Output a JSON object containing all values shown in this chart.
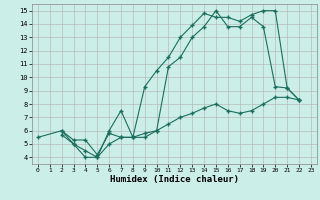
{
  "xlabel": "Humidex (Indice chaleur)",
  "bg_color": "#cceee8",
  "grid_color": "#b0b0b0",
  "line_color": "#1a6e5e",
  "xlim": [
    -0.5,
    23.5
  ],
  "ylim": [
    3.5,
    15.5
  ],
  "xticks": [
    0,
    1,
    2,
    3,
    4,
    5,
    6,
    7,
    8,
    9,
    10,
    11,
    12,
    13,
    14,
    15,
    16,
    17,
    18,
    19,
    20,
    21,
    22,
    23
  ],
  "yticks": [
    4,
    5,
    6,
    7,
    8,
    9,
    10,
    11,
    12,
    13,
    14,
    15
  ],
  "line1_x": [
    2,
    3,
    4,
    5,
    6,
    7,
    8,
    9,
    10,
    11,
    12,
    13,
    14,
    15,
    16,
    17,
    18,
    19,
    20,
    21,
    22
  ],
  "line1_y": [
    5.7,
    5.0,
    4.5,
    4.0,
    6.0,
    7.5,
    5.5,
    9.3,
    10.5,
    11.5,
    13.0,
    13.9,
    14.8,
    14.5,
    14.5,
    14.2,
    14.7,
    15.0,
    15.0,
    9.2,
    8.3
  ],
  "line2_x": [
    2,
    3,
    4,
    5,
    6,
    7,
    8,
    9,
    10,
    11,
    12,
    13,
    14,
    15,
    16,
    17,
    18,
    19,
    20,
    21,
    22
  ],
  "line2_y": [
    6.0,
    5.3,
    5.3,
    4.2,
    5.8,
    5.5,
    5.5,
    5.5,
    6.0,
    10.8,
    11.5,
    13.0,
    13.8,
    15.0,
    13.8,
    13.8,
    14.5,
    13.8,
    9.3,
    9.2,
    8.3
  ],
  "line3_x": [
    0,
    2,
    3,
    4,
    5,
    6,
    7,
    8,
    9,
    10,
    11,
    12,
    13,
    14,
    15,
    16,
    17,
    18,
    19,
    20,
    21,
    22
  ],
  "line3_y": [
    5.5,
    6.0,
    5.0,
    4.0,
    4.0,
    5.0,
    5.5,
    5.5,
    5.8,
    6.0,
    6.5,
    7.0,
    7.3,
    7.7,
    8.0,
    7.5,
    7.3,
    7.5,
    8.0,
    8.5,
    8.5,
    8.3
  ]
}
